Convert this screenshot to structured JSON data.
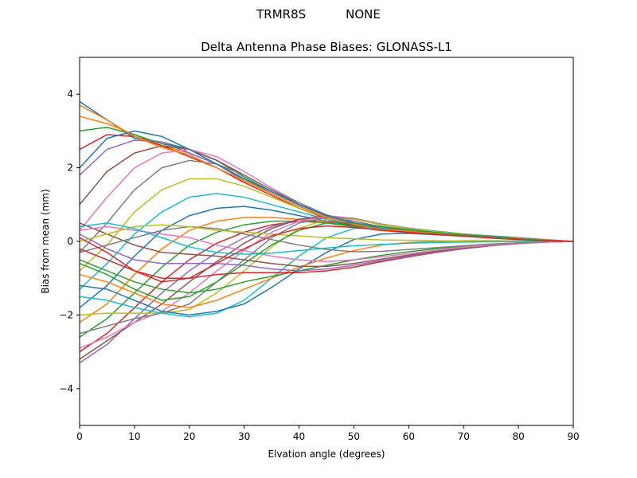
{
  "header": {
    "antenna": "TRMR8S",
    "radome": "NONE"
  },
  "chart_data": {
    "type": "line",
    "title": "Delta Antenna Phase Biases: GLONASS-L1",
    "xlabel": "Elvation angle (degrees)",
    "ylabel": "Bias from mean (mm)",
    "xlim": [
      0,
      90
    ],
    "ylim": [
      -5,
      5
    ],
    "xticks": [
      0,
      10,
      20,
      30,
      40,
      50,
      60,
      70,
      80,
      90
    ],
    "yticks": [
      -4,
      -2,
      0,
      2,
      4
    ],
    "grid": false,
    "legend": "none",
    "x": [
      0,
      5,
      10,
      15,
      20,
      25,
      30,
      35,
      40,
      45,
      50,
      55,
      60,
      65,
      70,
      75,
      80,
      85,
      90
    ],
    "colors": [
      "#1f77b4",
      "#ff7f0e",
      "#2ca02c",
      "#d62728",
      "#9467bd",
      "#8c564b",
      "#e377c2",
      "#7f7f7f",
      "#bcbd22",
      "#17becf"
    ],
    "series": [
      {
        "values": [
          3.8,
          3.3,
          2.8,
          2.7,
          2.5,
          2.2,
          1.8,
          1.4,
          1.0,
          0.7,
          0.5,
          0.35,
          0.3,
          0.25,
          0.2,
          0.15,
          0.1,
          0.05,
          0.0
        ]
      },
      {
        "values": [
          3.4,
          3.2,
          2.9,
          2.6,
          2.4,
          2.1,
          1.7,
          1.3,
          0.95,
          0.65,
          0.45,
          0.33,
          0.28,
          0.23,
          0.18,
          0.13,
          0.08,
          0.04,
          0.0
        ]
      },
      {
        "values": [
          3.0,
          3.1,
          2.9,
          2.65,
          2.5,
          2.2,
          1.75,
          1.35,
          1.0,
          0.7,
          0.5,
          0.36,
          0.3,
          0.24,
          0.19,
          0.14,
          0.09,
          0.04,
          0.0
        ]
      },
      {
        "values": [
          2.5,
          2.9,
          2.85,
          2.6,
          2.3,
          2.0,
          1.6,
          1.25,
          0.9,
          0.62,
          0.44,
          0.32,
          0.27,
          0.22,
          0.17,
          0.12,
          0.08,
          0.04,
          0.0
        ]
      },
      {
        "values": [
          1.8,
          2.5,
          2.75,
          2.7,
          2.4,
          2.1,
          1.65,
          1.3,
          0.95,
          0.66,
          0.47,
          0.34,
          0.28,
          0.22,
          0.17,
          0.12,
          0.08,
          0.04,
          0.0
        ]
      },
      {
        "values": [
          1.0,
          1.9,
          2.4,
          2.6,
          2.5,
          2.2,
          1.8,
          1.4,
          1.0,
          0.7,
          0.5,
          0.36,
          0.3,
          0.24,
          0.18,
          0.13,
          0.09,
          0.04,
          0.0
        ]
      },
      {
        "values": [
          0.3,
          1.2,
          2.0,
          2.4,
          2.5,
          2.3,
          1.9,
          1.45,
          1.05,
          0.72,
          0.5,
          0.36,
          0.3,
          0.24,
          0.18,
          0.13,
          0.09,
          0.04,
          0.0
        ]
      },
      {
        "values": [
          -0.3,
          0.5,
          1.4,
          2.0,
          2.2,
          2.1,
          1.8,
          1.4,
          1.05,
          0.72,
          0.5,
          0.36,
          0.3,
          0.24,
          0.18,
          0.13,
          0.09,
          0.04,
          0.0
        ]
      },
      {
        "values": [
          -0.8,
          -0.1,
          0.8,
          1.4,
          1.7,
          1.7,
          1.5,
          1.2,
          0.9,
          0.65,
          0.47,
          0.34,
          0.28,
          0.22,
          0.17,
          0.12,
          0.08,
          0.04,
          0.0
        ]
      },
      {
        "values": [
          -1.3,
          -0.6,
          0.2,
          0.8,
          1.2,
          1.3,
          1.2,
          1.0,
          0.8,
          0.6,
          0.45,
          0.33,
          0.27,
          0.22,
          0.17,
          0.12,
          0.08,
          0.04,
          0.0
        ]
      },
      {
        "values": [
          -1.8,
          -1.2,
          -0.4,
          0.3,
          0.7,
          0.9,
          0.95,
          0.85,
          0.7,
          0.55,
          0.42,
          0.31,
          0.26,
          0.21,
          0.16,
          0.11,
          0.07,
          0.03,
          0.0
        ]
      },
      {
        "values": [
          -2.2,
          -1.7,
          -0.9,
          -0.2,
          0.3,
          0.55,
          0.65,
          0.65,
          0.6,
          0.5,
          0.4,
          0.3,
          0.25,
          0.2,
          0.15,
          0.1,
          0.07,
          0.03,
          0.0
        ]
      },
      {
        "values": [
          -2.6,
          -2.1,
          -1.4,
          -0.7,
          -0.1,
          0.25,
          0.45,
          0.55,
          0.55,
          0.5,
          0.4,
          0.3,
          0.25,
          0.2,
          0.15,
          0.1,
          0.07,
          0.03,
          0.0
        ]
      },
      {
        "values": [
          -3.0,
          -2.5,
          -1.8,
          -1.1,
          -0.5,
          -0.05,
          0.25,
          0.45,
          0.55,
          0.55,
          0.45,
          0.33,
          0.27,
          0.21,
          0.16,
          0.11,
          0.07,
          0.03,
          0.0
        ]
      },
      {
        "values": [
          -3.3,
          -2.8,
          -2.1,
          -1.4,
          -0.8,
          -0.3,
          0.1,
          0.4,
          0.6,
          0.65,
          0.55,
          0.4,
          0.32,
          0.25,
          0.18,
          0.12,
          0.08,
          0.04,
          0.0
        ]
      },
      {
        "values": [
          -3.2,
          -2.7,
          -2.2,
          -1.7,
          -1.1,
          -0.55,
          -0.05,
          0.35,
          0.6,
          0.7,
          0.62,
          0.45,
          0.35,
          0.27,
          0.2,
          0.13,
          0.08,
          0.04,
          0.0
        ]
      },
      {
        "values": [
          -2.9,
          -2.6,
          -2.2,
          -1.9,
          -1.4,
          -0.8,
          -0.25,
          0.25,
          0.55,
          0.68,
          0.63,
          0.47,
          0.36,
          0.28,
          0.2,
          0.13,
          0.08,
          0.04,
          0.0
        ]
      },
      {
        "values": [
          -2.5,
          -2.3,
          -2.1,
          -1.95,
          -1.7,
          -1.1,
          -0.5,
          0.1,
          0.5,
          0.65,
          0.62,
          0.47,
          0.36,
          0.28,
          0.2,
          0.13,
          0.08,
          0.04,
          0.0
        ]
      },
      {
        "values": [
          -2.0,
          -1.95,
          -1.95,
          -1.95,
          -1.85,
          -1.4,
          -0.8,
          -0.15,
          0.35,
          0.6,
          0.6,
          0.46,
          0.35,
          0.27,
          0.2,
          0.13,
          0.08,
          0.04,
          0.0
        ]
      },
      {
        "values": [
          -1.5,
          -1.6,
          -1.8,
          -1.95,
          -2.05,
          -1.95,
          -1.6,
          -1.0,
          -0.4,
          0.1,
          0.35,
          0.38,
          0.32,
          0.25,
          0.18,
          0.12,
          0.08,
          0.04,
          0.0
        ]
      },
      {
        "values": [
          -1.2,
          -1.3,
          -1.6,
          -1.9,
          -2.0,
          -1.9,
          -1.7,
          -1.25,
          -0.75,
          -0.3,
          0.05,
          0.2,
          0.22,
          0.18,
          0.14,
          0.1,
          0.06,
          0.03,
          0.0
        ]
      },
      {
        "values": [
          -0.9,
          -1.1,
          -1.4,
          -1.7,
          -1.8,
          -1.6,
          -1.3,
          -1.0,
          -0.7,
          -0.45,
          -0.25,
          -0.1,
          -0.03,
          0.0,
          0.02,
          0.02,
          0.01,
          0.0,
          0.0
        ]
      },
      {
        "values": [
          -0.5,
          -0.8,
          -1.1,
          -1.3,
          -1.4,
          -1.3,
          -1.1,
          -0.95,
          -0.8,
          -0.65,
          -0.5,
          -0.38,
          -0.28,
          -0.2,
          -0.13,
          -0.08,
          -0.04,
          -0.02,
          0.0
        ]
      },
      {
        "values": [
          -0.2,
          -0.5,
          -0.8,
          -1.0,
          -1.0,
          -0.9,
          -0.85,
          -0.85,
          -0.85,
          -0.8,
          -0.7,
          -0.55,
          -0.42,
          -0.3,
          -0.2,
          -0.12,
          -0.06,
          -0.02,
          0.0
        ]
      },
      {
        "values": [
          0.2,
          -0.2,
          -0.5,
          -0.6,
          -0.6,
          -0.6,
          -0.65,
          -0.75,
          -0.8,
          -0.75,
          -0.65,
          -0.52,
          -0.4,
          -0.29,
          -0.2,
          -0.12,
          -0.06,
          -0.02,
          0.0
        ]
      },
      {
        "values": [
          0.5,
          0.2,
          -0.1,
          -0.3,
          -0.35,
          -0.4,
          -0.5,
          -0.6,
          -0.68,
          -0.68,
          -0.6,
          -0.48,
          -0.37,
          -0.27,
          -0.18,
          -0.11,
          -0.05,
          -0.02,
          0.0
        ]
      },
      {
        "values": [
          0.3,
          0.4,
          0.3,
          0.2,
          0.1,
          -0.1,
          -0.25,
          -0.4,
          -0.5,
          -0.55,
          -0.5,
          -0.42,
          -0.33,
          -0.24,
          -0.16,
          -0.1,
          -0.05,
          -0.02,
          0.0
        ]
      },
      {
        "values": [
          -0.3,
          -0.1,
          0.1,
          0.3,
          0.4,
          0.35,
          0.2,
          0.05,
          -0.1,
          -0.22,
          -0.28,
          -0.27,
          -0.22,
          -0.17,
          -0.12,
          -0.07,
          -0.04,
          -0.01,
          0.0
        ]
      },
      {
        "values": [
          0.0,
          0.2,
          0.4,
          0.45,
          0.4,
          0.3,
          0.25,
          0.2,
          0.15,
          0.1,
          0.07,
          0.04,
          0.03,
          0.02,
          0.01,
          0.01,
          0.0,
          0.0,
          0.0
        ]
      },
      {
        "values": [
          0.4,
          0.5,
          0.35,
          0.1,
          -0.15,
          -0.3,
          -0.35,
          -0.32,
          -0.25,
          -0.18,
          -0.12,
          -0.08,
          -0.05,
          -0.03,
          -0.02,
          -0.01,
          0.0,
          0.0,
          0.0
        ]
      },
      {
        "values": [
          2.0,
          2.8,
          3.0,
          2.85,
          2.5,
          2.1,
          1.7,
          1.35,
          1.0,
          0.7,
          0.5,
          0.35,
          0.29,
          0.23,
          0.18,
          0.13,
          0.08,
          0.04,
          0.0
        ]
      },
      {
        "values": [
          3.7,
          3.3,
          2.85,
          2.55,
          2.35,
          2.0,
          1.65,
          1.3,
          0.95,
          0.66,
          0.46,
          0.33,
          0.28,
          0.22,
          0.17,
          0.12,
          0.08,
          0.04,
          0.0
        ]
      },
      {
        "values": [
          -0.6,
          -0.9,
          -1.3,
          -1.6,
          -1.5,
          -1.1,
          -0.6,
          -0.1,
          0.3,
          0.5,
          0.5,
          0.4,
          0.31,
          0.24,
          0.17,
          0.11,
          0.07,
          0.03,
          0.0
        ]
      },
      {
        "values": [
          0.1,
          -0.3,
          -0.8,
          -1.1,
          -1.0,
          -0.6,
          -0.2,
          0.15,
          0.35,
          0.42,
          0.38,
          0.3,
          0.24,
          0.19,
          0.14,
          0.09,
          0.05,
          0.02,
          0.0
        ]
      }
    ]
  }
}
